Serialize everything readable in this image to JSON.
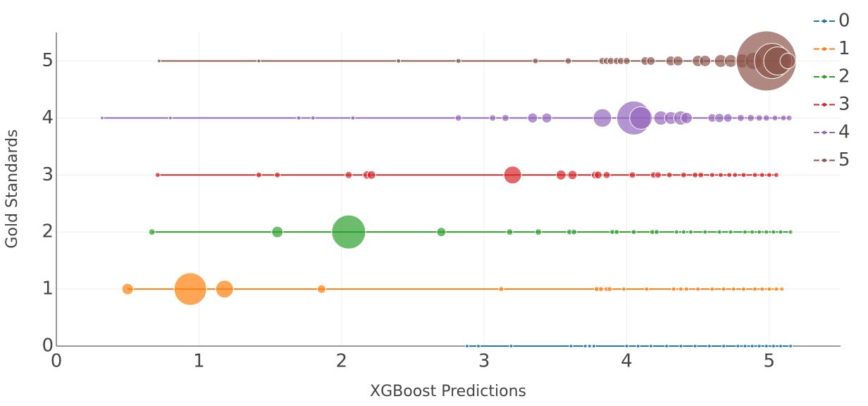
{
  "chart_data": {
    "type": "scatter",
    "mode": "lines+markers",
    "x_label": "XGBoost Predictions",
    "y_label": "Gold Standards",
    "xlim": [
      0,
      5.5
    ],
    "ylim": [
      0,
      5.5
    ],
    "xticks": [
      0,
      1,
      2,
      3,
      4,
      5
    ],
    "yticks": [
      0,
      1,
      2,
      3,
      4,
      5
    ],
    "grid": true,
    "legend": "right-top",
    "series": [
      {
        "name": "0",
        "color": "#1f77b4",
        "x": [
          2.88,
          2.96,
          3.19,
          3.61,
          3.71,
          3.74,
          3.77,
          4.0,
          4.08,
          4.17,
          4.28,
          4.38,
          4.48,
          4.58,
          4.68,
          4.78,
          4.83,
          4.88,
          4.93,
          4.98,
          5.03,
          5.08,
          5.15
        ],
        "values": [
          0,
          0,
          0,
          0,
          0,
          0,
          0,
          0,
          0,
          0,
          0,
          0,
          0,
          0,
          0,
          0,
          0,
          0,
          0,
          0,
          0,
          0,
          0
        ],
        "sizes": [
          5,
          5,
          5,
          5,
          5,
          5,
          5,
          5,
          5,
          5,
          5,
          5,
          5,
          5,
          5,
          5,
          5,
          5,
          5,
          5,
          5,
          5,
          5
        ]
      },
      {
        "name": "1",
        "color": "#ff7f0e",
        "x": [
          0.5,
          0.94,
          1.18,
          1.86,
          3.12,
          3.79,
          3.82,
          3.86,
          3.88,
          3.98,
          4.14,
          4.33,
          4.38,
          4.42,
          4.5,
          4.6,
          4.68,
          4.75,
          4.82,
          4.9,
          4.95,
          5.0,
          5.05,
          5.09
        ],
        "values": [
          1,
          1,
          1,
          1,
          1,
          1,
          1,
          1,
          1,
          1,
          1,
          1,
          1,
          1,
          1,
          1,
          1,
          1,
          1,
          1,
          1,
          1,
          1,
          1
        ],
        "sizes": [
          16,
          46,
          25,
          12,
          7,
          7,
          7,
          7,
          7,
          6,
          6,
          6,
          6,
          6,
          6,
          6,
          6,
          6,
          6,
          6,
          6,
          6,
          6,
          6
        ]
      },
      {
        "name": "2",
        "color": "#2ca02c",
        "x": [
          0.67,
          1.55,
          2.05,
          2.7,
          3.18,
          3.38,
          3.6,
          3.63,
          3.9,
          3.93,
          4.05,
          4.18,
          4.21,
          4.35,
          4.4,
          4.45,
          4.55,
          4.65,
          4.73,
          4.83,
          4.88,
          4.93,
          4.98,
          5.03,
          5.08,
          5.15
        ],
        "values": [
          2,
          2,
          2,
          2,
          2,
          2,
          2,
          2,
          2,
          2,
          2,
          2,
          2,
          2,
          2,
          2,
          2,
          2,
          2,
          2,
          2,
          2,
          2,
          2,
          2,
          2
        ],
        "sizes": [
          9,
          16,
          48,
          13,
          9,
          9,
          8,
          8,
          7,
          7,
          7,
          7,
          7,
          6,
          6,
          6,
          6,
          6,
          6,
          6,
          6,
          6,
          6,
          6,
          6,
          6
        ]
      },
      {
        "name": "3",
        "color": "#d62728",
        "x": [
          0.71,
          1.42,
          1.55,
          2.05,
          2.18,
          2.21,
          3.2,
          3.54,
          3.62,
          3.78,
          3.8,
          3.86,
          4.04,
          4.19,
          4.22,
          4.3,
          4.4,
          4.48,
          4.52,
          4.6,
          4.66,
          4.72,
          4.76,
          4.82,
          4.9,
          4.95,
          5.0,
          5.05
        ],
        "values": [
          3,
          3,
          3,
          3,
          3,
          3,
          3,
          3,
          3,
          3,
          3,
          3,
          3,
          3,
          3,
          3,
          3,
          3,
          3,
          3,
          3,
          3,
          3,
          3,
          3,
          3,
          3,
          3
        ],
        "sizes": [
          7,
          8,
          8,
          10,
          12,
          12,
          25,
          14,
          13,
          11,
          11,
          10,
          9,
          9,
          9,
          8,
          8,
          8,
          8,
          7,
          7,
          7,
          7,
          7,
          7,
          7,
          7,
          7
        ]
      },
      {
        "name": "4",
        "color": "#9467bd",
        "x": [
          0.32,
          0.8,
          1.7,
          1.8,
          2.08,
          2.82,
          3.06,
          3.15,
          3.34,
          3.44,
          3.83,
          4.05,
          4.1,
          4.24,
          4.31,
          4.38,
          4.42,
          4.6,
          4.65,
          4.71,
          4.8,
          4.87,
          4.93,
          4.98,
          5.04,
          5.1,
          5.14
        ],
        "values": [
          4,
          4,
          4,
          4,
          4,
          4,
          4,
          4,
          4,
          4,
          4,
          4,
          4,
          4,
          4,
          4,
          4,
          4,
          4,
          4,
          4,
          4,
          4,
          4,
          4,
          4,
          4
        ],
        "sizes": [
          5,
          5,
          6,
          6,
          6,
          9,
          9,
          10,
          14,
          14,
          26,
          48,
          32,
          20,
          18,
          20,
          16,
          12,
          13,
          12,
          10,
          10,
          9,
          9,
          8,
          8,
          8
        ]
      },
      {
        "name": "5",
        "color": "#8c564b",
        "x": [
          0.72,
          1.42,
          2.4,
          2.82,
          3.36,
          3.59,
          3.83,
          3.86,
          3.89,
          3.93,
          3.96,
          4.0,
          4.13,
          4.17,
          4.31,
          4.36,
          4.5,
          4.55,
          4.66,
          4.73,
          4.81,
          4.89,
          4.98,
          5.02,
          5.06,
          5.13
        ],
        "values": [
          5,
          5,
          5,
          5,
          5,
          5,
          5,
          5,
          5,
          5,
          5,
          5,
          5,
          5,
          5,
          5,
          5,
          5,
          5,
          5,
          5,
          5,
          5,
          5,
          5,
          5
        ],
        "sizes": [
          5,
          5,
          6,
          7,
          8,
          9,
          10,
          10,
          10,
          10,
          10,
          10,
          12,
          12,
          14,
          14,
          16,
          16,
          18,
          18,
          20,
          24,
          85,
          50,
          40,
          22
        ]
      }
    ]
  }
}
